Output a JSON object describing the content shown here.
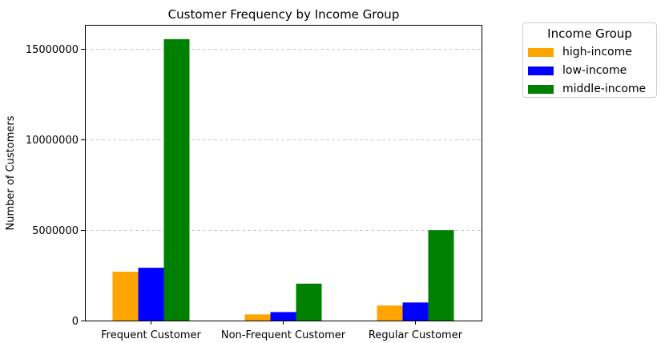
{
  "chart_data": {
    "type": "bar",
    "title": "Customer Frequency by Income Group",
    "xlabel": "",
    "ylabel": "Number of Customers",
    "categories": [
      "Frequent Customer",
      "Non-Frequent Customer",
      "Regular Customer"
    ],
    "series": [
      {
        "name": "high-income",
        "color": "#ffa500",
        "values": [
          2700000,
          340000,
          830000
        ]
      },
      {
        "name": "low-income",
        "color": "#0000ff",
        "values": [
          2920000,
          470000,
          1000000
        ]
      },
      {
        "name": "middle-income",
        "color": "#008000",
        "values": [
          15560000,
          2040000,
          5000000
        ]
      }
    ],
    "ylim": [
      0,
      16350000
    ],
    "yticks": [
      0,
      5000000,
      10000000,
      15000000
    ],
    "ytick_labels": [
      "0",
      "5000000",
      "10000000",
      "15000000"
    ],
    "grid": "y-dashed",
    "legend": {
      "title": "Income Group",
      "placement": "outside-top-right"
    }
  }
}
